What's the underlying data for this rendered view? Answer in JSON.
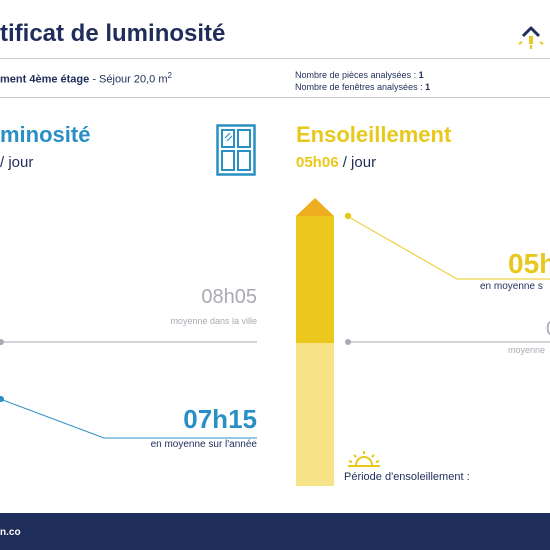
{
  "header": {
    "title": "tificat de luminosité",
    "property": "ment 4ème étage",
    "room": " - Séjour 20,0 m",
    "room_sup": "2",
    "rooms_label": "Nombre de pièces analysées : ",
    "rooms_value": "1",
    "windows_label": "Nombre de fenêtres analysées : ",
    "windows_value": "1"
  },
  "luminosity": {
    "heading": "minosité",
    "per_day": "/ jour",
    "city_value": "08h05",
    "city_caption": "moyenne dans la ville",
    "year_value": "07h15",
    "year_caption": "en moyenne sur l'année"
  },
  "sunshine": {
    "heading": "Ensoleillement",
    "value": "05h06",
    "per_day": " / jour",
    "right_value": "05h",
    "right_caption": "en moyenne s",
    "right_city_value": "0",
    "right_city_caption": "moyenne",
    "period_label": "Période d'ensoleillement :"
  },
  "footer": {
    "text": "n.co"
  },
  "colors": {
    "navy": "#1f2d5a",
    "blue": "#2a8fc4",
    "yellow": "#e9c81d",
    "pale_yellow": "#f7e489",
    "grey": "#a9aab3"
  },
  "icons": [
    "logo-icon",
    "window-icon",
    "sunrise-icon"
  ]
}
